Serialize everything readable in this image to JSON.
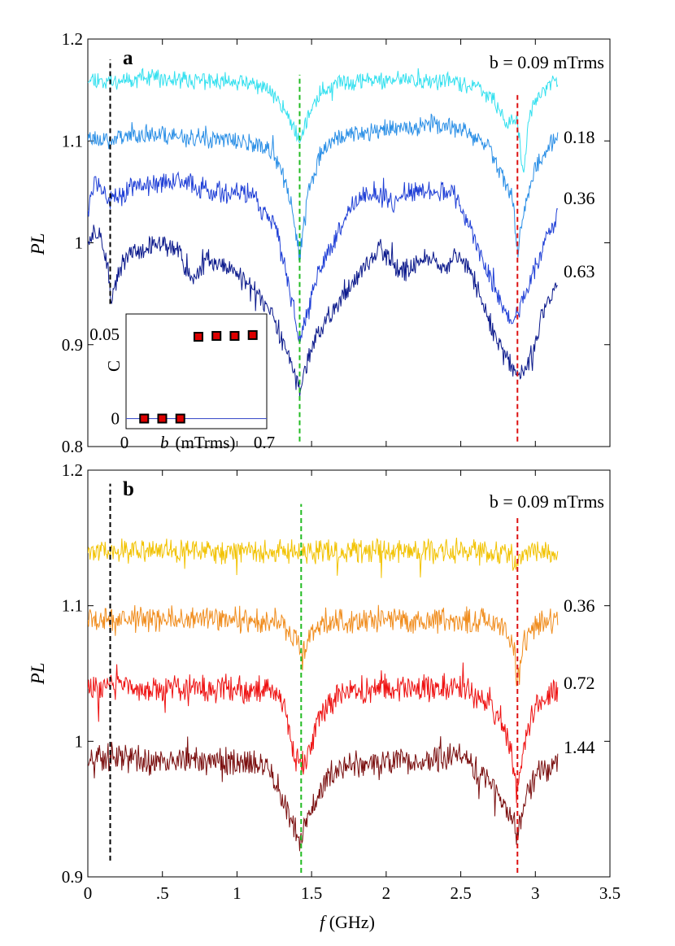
{
  "figure": {
    "x_axis": {
      "label_italic": "f",
      "label_rest": " (GHz)",
      "ticks": [
        0,
        0.5,
        1,
        1.5,
        2,
        2.5,
        3,
        3.5
      ],
      "tick_labels": [
        "0",
        ".5",
        "1",
        "1.5",
        "2",
        "2.5",
        "3",
        "3.5"
      ],
      "range": [
        0,
        3.5
      ]
    },
    "y_axis_label": "PL"
  },
  "chart_data": [
    {
      "panel": "a",
      "type": "line",
      "xlabel": "f (GHz)",
      "ylabel": "PL",
      "xlim": [
        0,
        3.5
      ],
      "ylim": [
        0.8,
        1.2
      ],
      "yticks": [
        0.8,
        0.9,
        1,
        1.1,
        1.2
      ],
      "ytick_labels": [
        "0.8",
        "0.9",
        "1",
        "1.1",
        "1.2"
      ],
      "vlines": [
        {
          "x": 0.15,
          "color": "#000000",
          "y_from": 0.94,
          "y_to": 1.18
        },
        {
          "x": 1.42,
          "color": "#22bb22",
          "y_from": 0.805,
          "y_to": 1.165
        },
        {
          "x": 2.88,
          "color": "#dd1111",
          "y_from": 0.805,
          "y_to": 1.145
        }
      ],
      "series": [
        {
          "name": "b = 0.09 mTrms",
          "label": "b = 0.09 mTrms",
          "color": "#33e0ef",
          "seed": 11,
          "noise": 0.0065,
          "points": [
            [
              0,
              1.162
            ],
            [
              0.15,
              1.158
            ],
            [
              0.3,
              1.162
            ],
            [
              0.6,
              1.16
            ],
            [
              1.0,
              1.158
            ],
            [
              1.2,
              1.152
            ],
            [
              1.3,
              1.135
            ],
            [
              1.36,
              1.12
            ],
            [
              1.42,
              1.1
            ],
            [
              1.48,
              1.125
            ],
            [
              1.56,
              1.148
            ],
            [
              1.7,
              1.158
            ],
            [
              2.0,
              1.16
            ],
            [
              2.4,
              1.158
            ],
            [
              2.6,
              1.155
            ],
            [
              2.72,
              1.14
            ],
            [
              2.8,
              1.12
            ],
            [
              2.88,
              1.12
            ],
            [
              2.92,
              1.062
            ],
            [
              2.96,
              1.13
            ],
            [
              3.05,
              1.15
            ],
            [
              3.15,
              1.16
            ]
          ]
        },
        {
          "name": "0.18",
          "label": "0.18",
          "color": "#2b8fe6",
          "seed": 23,
          "noise": 0.0075,
          "points": [
            [
              0,
              1.105
            ],
            [
              0.15,
              1.1
            ],
            [
              0.3,
              1.108
            ],
            [
              0.6,
              1.105
            ],
            [
              1.0,
              1.1
            ],
            [
              1.2,
              1.095
            ],
            [
              1.3,
              1.07
            ],
            [
              1.36,
              1.04
            ],
            [
              1.42,
              0.985
            ],
            [
              1.48,
              1.05
            ],
            [
              1.56,
              1.09
            ],
            [
              1.7,
              1.105
            ],
            [
              2.0,
              1.112
            ],
            [
              2.3,
              1.118
            ],
            [
              2.5,
              1.11
            ],
            [
              2.65,
              1.1
            ],
            [
              2.75,
              1.075
            ],
            [
              2.85,
              1.045
            ],
            [
              2.88,
              0.985
            ],
            [
              2.92,
              1.03
            ],
            [
              3.0,
              1.075
            ],
            [
              3.15,
              1.105
            ]
          ]
        },
        {
          "name": "0.36",
          "label": "0.36",
          "color": "#1f3fd6",
          "seed": 37,
          "noise": 0.0085,
          "points": [
            [
              0,
              1.035
            ],
            [
              0.05,
              1.06
            ],
            [
              0.15,
              1.04
            ],
            [
              0.3,
              1.055
            ],
            [
              0.6,
              1.06
            ],
            [
              0.9,
              1.05
            ],
            [
              1.1,
              1.045
            ],
            [
              1.25,
              1.02
            ],
            [
              1.35,
              0.955
            ],
            [
              1.42,
              0.905
            ],
            [
              1.48,
              0.935
            ],
            [
              1.56,
              0.975
            ],
            [
              1.7,
              1.02
            ],
            [
              1.85,
              1.05
            ],
            [
              2.05,
              1.04
            ],
            [
              2.25,
              1.055
            ],
            [
              2.45,
              1.05
            ],
            [
              2.55,
              1.02
            ],
            [
              2.65,
              0.98
            ],
            [
              2.75,
              0.945
            ],
            [
              2.85,
              0.92
            ],
            [
              2.95,
              0.955
            ],
            [
              3.05,
              0.995
            ],
            [
              3.15,
              1.03
            ]
          ]
        },
        {
          "name": "0.63",
          "label": "0.63",
          "color": "#0c1a8c",
          "seed": 51,
          "noise": 0.008,
          "points": [
            [
              0,
              1.0
            ],
            [
              0.08,
              1.015
            ],
            [
              0.14,
              0.97
            ],
            [
              0.16,
              0.945
            ],
            [
              0.22,
              0.975
            ],
            [
              0.3,
              0.99
            ],
            [
              0.45,
              1.0
            ],
            [
              0.6,
              0.995
            ],
            [
              0.7,
              0.96
            ],
            [
              0.8,
              0.985
            ],
            [
              0.95,
              0.975
            ],
            [
              1.1,
              0.955
            ],
            [
              1.25,
              0.925
            ],
            [
              1.35,
              0.885
            ],
            [
              1.42,
              0.855
            ],
            [
              1.5,
              0.9
            ],
            [
              1.65,
              0.935
            ],
            [
              1.8,
              0.965
            ],
            [
              1.95,
              0.995
            ],
            [
              2.1,
              0.97
            ],
            [
              2.25,
              0.985
            ],
            [
              2.4,
              0.975
            ],
            [
              2.5,
              0.99
            ],
            [
              2.6,
              0.96
            ],
            [
              2.75,
              0.9
            ],
            [
              2.88,
              0.87
            ],
            [
              2.98,
              0.89
            ],
            [
              3.05,
              0.93
            ],
            [
              3.15,
              0.96
            ]
          ]
        }
      ],
      "inset": {
        "type": "scatter",
        "xlabel_italic": "b",
        "xlabel_rest": "(mTrms)",
        "ylabel": "C",
        "xlim": [
          0,
          0.7
        ],
        "ylim": [
          -0.006,
          0.062
        ],
        "xtick_labels": [
          "0",
          "0.7"
        ],
        "ytick_labels": [
          "0",
          "0.05"
        ],
        "yticks": [
          0,
          0.05
        ],
        "hline_y": 0,
        "x": [
          0.09,
          0.18,
          0.27,
          0.36,
          0.45,
          0.54,
          0.63
        ],
        "y": [
          0,
          0,
          0,
          0.0485,
          0.049,
          0.049,
          0.0495
        ],
        "marker_fill": "#dd0000",
        "marker_edge": "#000000",
        "line_color": "#4455cc"
      }
    },
    {
      "panel": "b",
      "type": "line",
      "xlabel": "f (GHz)",
      "ylabel": "PL",
      "xlim": [
        0,
        3.5
      ],
      "ylim": [
        0.9,
        1.2
      ],
      "yticks": [
        0.9,
        1,
        1.1,
        1.2
      ],
      "ytick_labels": [
        "0.9",
        "1",
        "1.1",
        "1.2"
      ],
      "vlines": [
        {
          "x": 0.15,
          "color": "#000000",
          "y_from": 0.912,
          "y_to": 1.19
        },
        {
          "x": 1.43,
          "color": "#22bb22",
          "y_from": 0.903,
          "y_to": 1.175
        },
        {
          "x": 2.88,
          "color": "#dd1111",
          "y_from": 0.903,
          "y_to": 1.165
        }
      ],
      "series": [
        {
          "name": "b = 0.09 mTrms",
          "label": "b = 0.09 mTrms",
          "color": "#f2c200",
          "seed": 61,
          "noise": 0.007,
          "points": [
            [
              0,
              1.14
            ],
            [
              0.5,
              1.14
            ],
            [
              1.0,
              1.14
            ],
            [
              1.5,
              1.14
            ],
            [
              2.0,
              1.14
            ],
            [
              2.5,
              1.14
            ],
            [
              2.8,
              1.14
            ],
            [
              2.88,
              1.13
            ],
            [
              2.95,
              1.14
            ],
            [
              3.15,
              1.14
            ]
          ]
        },
        {
          "name": "0.36",
          "label": "0.36",
          "color": "#f08c1c",
          "seed": 73,
          "noise": 0.0075,
          "points": [
            [
              0,
              1.09
            ],
            [
              0.5,
              1.09
            ],
            [
              1.0,
              1.09
            ],
            [
              1.3,
              1.088
            ],
            [
              1.38,
              1.075
            ],
            [
              1.43,
              1.065
            ],
            [
              1.5,
              1.08
            ],
            [
              1.6,
              1.088
            ],
            [
              2.0,
              1.09
            ],
            [
              2.5,
              1.09
            ],
            [
              2.8,
              1.085
            ],
            [
              2.86,
              1.07
            ],
            [
              2.88,
              1.04
            ],
            [
              2.92,
              1.07
            ],
            [
              3.0,
              1.088
            ],
            [
              3.15,
              1.09
            ]
          ]
        },
        {
          "name": "0.72",
          "label": "0.72",
          "color": "#ee1111",
          "seed": 83,
          "noise": 0.008,
          "points": [
            [
              0,
              1.04
            ],
            [
              0.5,
              1.04
            ],
            [
              1.0,
              1.038
            ],
            [
              1.25,
              1.035
            ],
            [
              1.33,
              1.02
            ],
            [
              1.38,
              0.99
            ],
            [
              1.42,
              0.98
            ],
            [
              1.48,
              0.99
            ],
            [
              1.55,
              1.02
            ],
            [
              1.7,
              1.035
            ],
            [
              2.0,
              1.04
            ],
            [
              2.3,
              1.04
            ],
            [
              2.5,
              1.042
            ],
            [
              2.65,
              1.03
            ],
            [
              2.78,
              1.015
            ],
            [
              2.84,
              0.99
            ],
            [
              2.88,
              0.96
            ],
            [
              2.92,
              0.995
            ],
            [
              3.0,
              1.025
            ],
            [
              3.15,
              1.038
            ]
          ]
        },
        {
          "name": "1.44",
          "label": "1.44",
          "color": "#7a0e0e",
          "seed": 97,
          "noise": 0.008,
          "points": [
            [
              0,
              0.99
            ],
            [
              0.4,
              0.985
            ],
            [
              0.8,
              0.985
            ],
            [
              1.1,
              0.985
            ],
            [
              1.2,
              0.98
            ],
            [
              1.28,
              0.965
            ],
            [
              1.35,
              0.945
            ],
            [
              1.42,
              0.925
            ],
            [
              1.5,
              0.95
            ],
            [
              1.58,
              0.97
            ],
            [
              1.7,
              0.98
            ],
            [
              2.0,
              0.985
            ],
            [
              2.3,
              0.985
            ],
            [
              2.5,
              0.988
            ],
            [
              2.65,
              0.975
            ],
            [
              2.78,
              0.955
            ],
            [
              2.84,
              0.945
            ],
            [
              2.88,
              0.93
            ],
            [
              2.92,
              0.955
            ],
            [
              3.0,
              0.975
            ],
            [
              3.15,
              0.985
            ]
          ]
        }
      ]
    }
  ]
}
